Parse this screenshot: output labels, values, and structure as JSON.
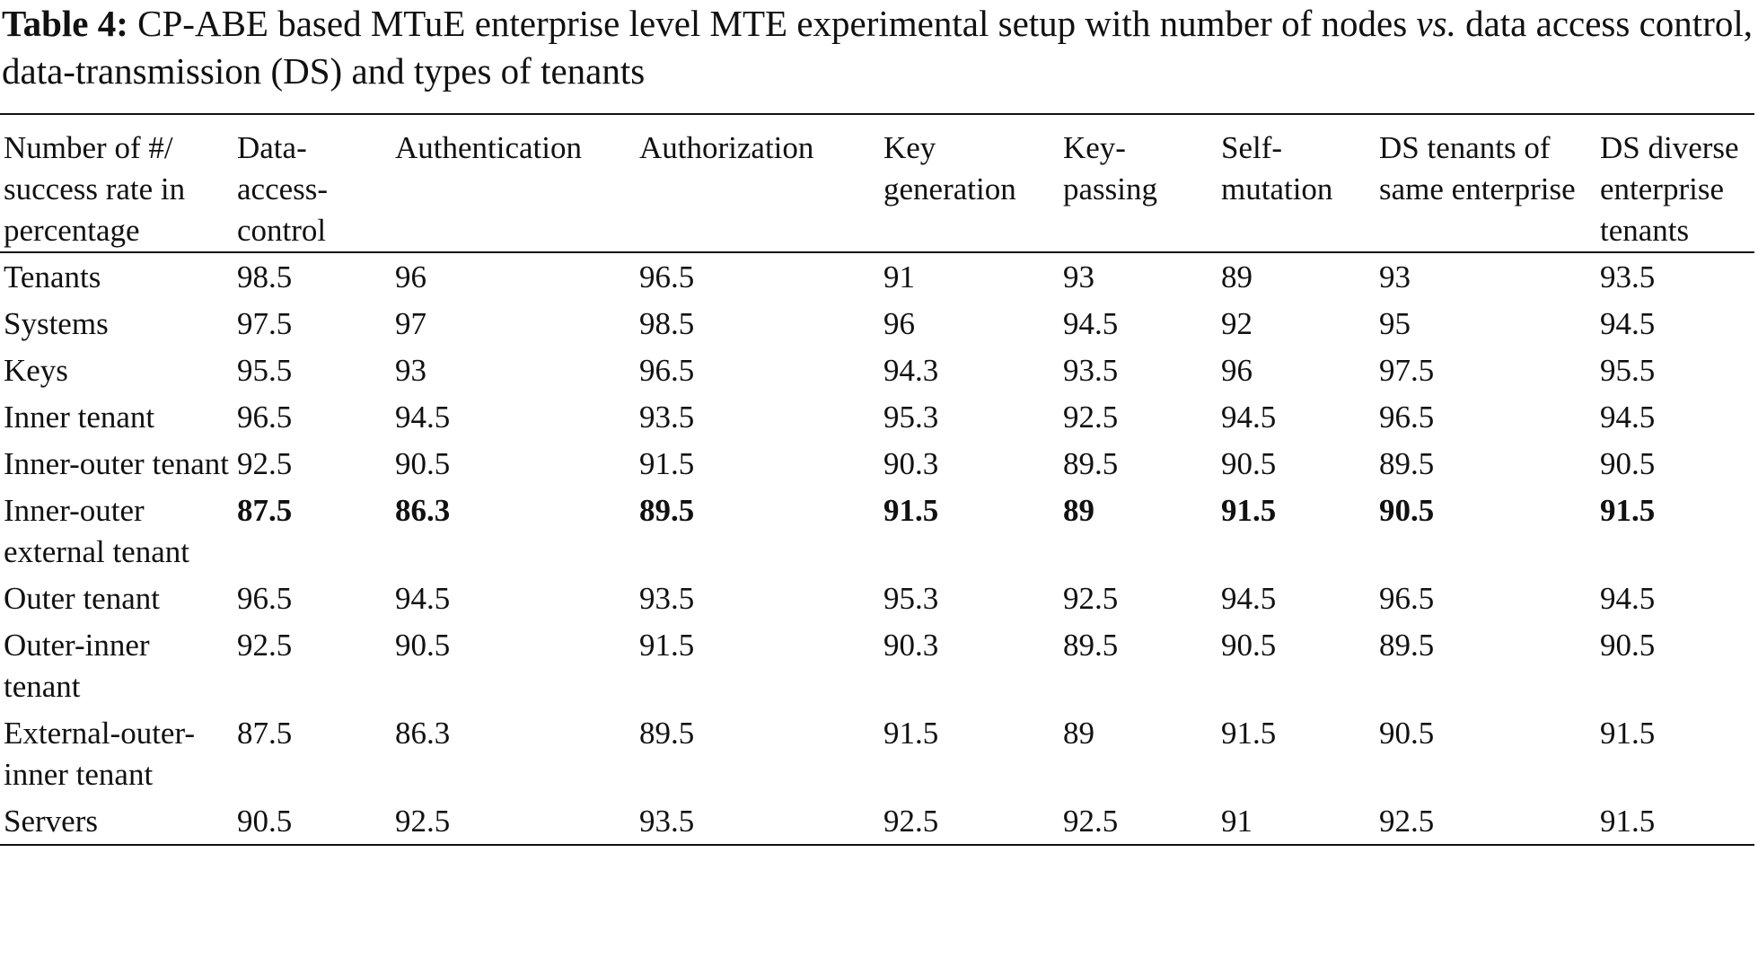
{
  "caption": {
    "label": "Table 4:",
    "text_a": " CP-ABE based MTuE enterprise level MTE experimental setup with number of nodes ",
    "text_vs": "vs.",
    "text_b": " data access control, data-transmission (DS) and types of tenants"
  },
  "table": {
    "headers": [
      "Number of #/ success rate in percentage",
      "Data-access-control",
      "Authentication",
      "Authorization",
      "Key generation",
      "Key-passing",
      "Self-mutation",
      "DS tenants of same enterprise",
      "DS diverse enterprise tenants"
    ],
    "rows": [
      {
        "label": "Tenants",
        "bold": false,
        "values": [
          "98.5",
          "96",
          "96.5",
          "91",
          "93",
          "89",
          "93",
          "93.5"
        ]
      },
      {
        "label": "Systems",
        "bold": false,
        "values": [
          "97.5",
          "97",
          "98.5",
          "96",
          "94.5",
          "92",
          "95",
          "94.5"
        ]
      },
      {
        "label": "Keys",
        "bold": false,
        "values": [
          "95.5",
          "93",
          "96.5",
          "94.3",
          "93.5",
          "96",
          "97.5",
          "95.5"
        ]
      },
      {
        "label": "Inner tenant",
        "bold": false,
        "values": [
          "96.5",
          "94.5",
          "93.5",
          "95.3",
          "92.5",
          "94.5",
          "96.5",
          "94.5"
        ]
      },
      {
        "label": "Inner-outer tenant",
        "bold": false,
        "values": [
          "92.5",
          "90.5",
          "91.5",
          "90.3",
          "89.5",
          "90.5",
          "89.5",
          "90.5"
        ]
      },
      {
        "label": "Inner-outer external tenant",
        "bold": true,
        "values": [
          "87.5",
          "86.3",
          "89.5",
          "91.5",
          "89",
          "91.5",
          "90.5",
          "91.5"
        ]
      },
      {
        "label": "Outer tenant",
        "bold": false,
        "values": [
          "96.5",
          "94.5",
          "93.5",
          "95.3",
          "92.5",
          "94.5",
          "96.5",
          "94.5"
        ]
      },
      {
        "label": "Outer-inner tenant",
        "bold": false,
        "values": [
          "92.5",
          "90.5",
          "91.5",
          "90.3",
          "89.5",
          "90.5",
          "89.5",
          "90.5"
        ]
      },
      {
        "label": "External-outer-inner tenant",
        "bold": false,
        "values": [
          "87.5",
          "86.3",
          "89.5",
          "91.5",
          "89",
          "91.5",
          "90.5",
          "91.5"
        ]
      },
      {
        "label": "Servers",
        "bold": false,
        "values": [
          "90.5",
          "92.5",
          "93.5",
          "92.5",
          "92.5",
          "91",
          "92.5",
          "91.5"
        ]
      }
    ]
  }
}
